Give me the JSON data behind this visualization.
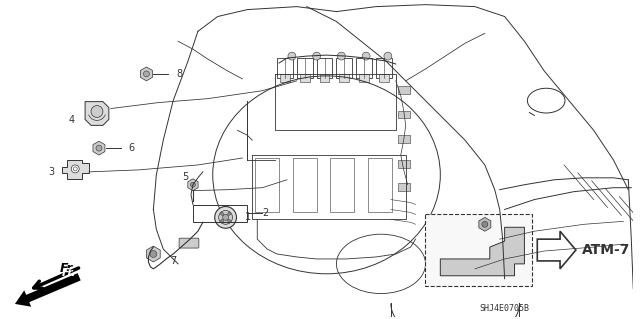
{
  "bg_color": "#ffffff",
  "fig_width": 6.4,
  "fig_height": 3.19,
  "diagram_code": "SHJ4E0705B",
  "atm_label": "ATM-7",
  "line_color": "#333333",
  "line_color_light": "#666666"
}
